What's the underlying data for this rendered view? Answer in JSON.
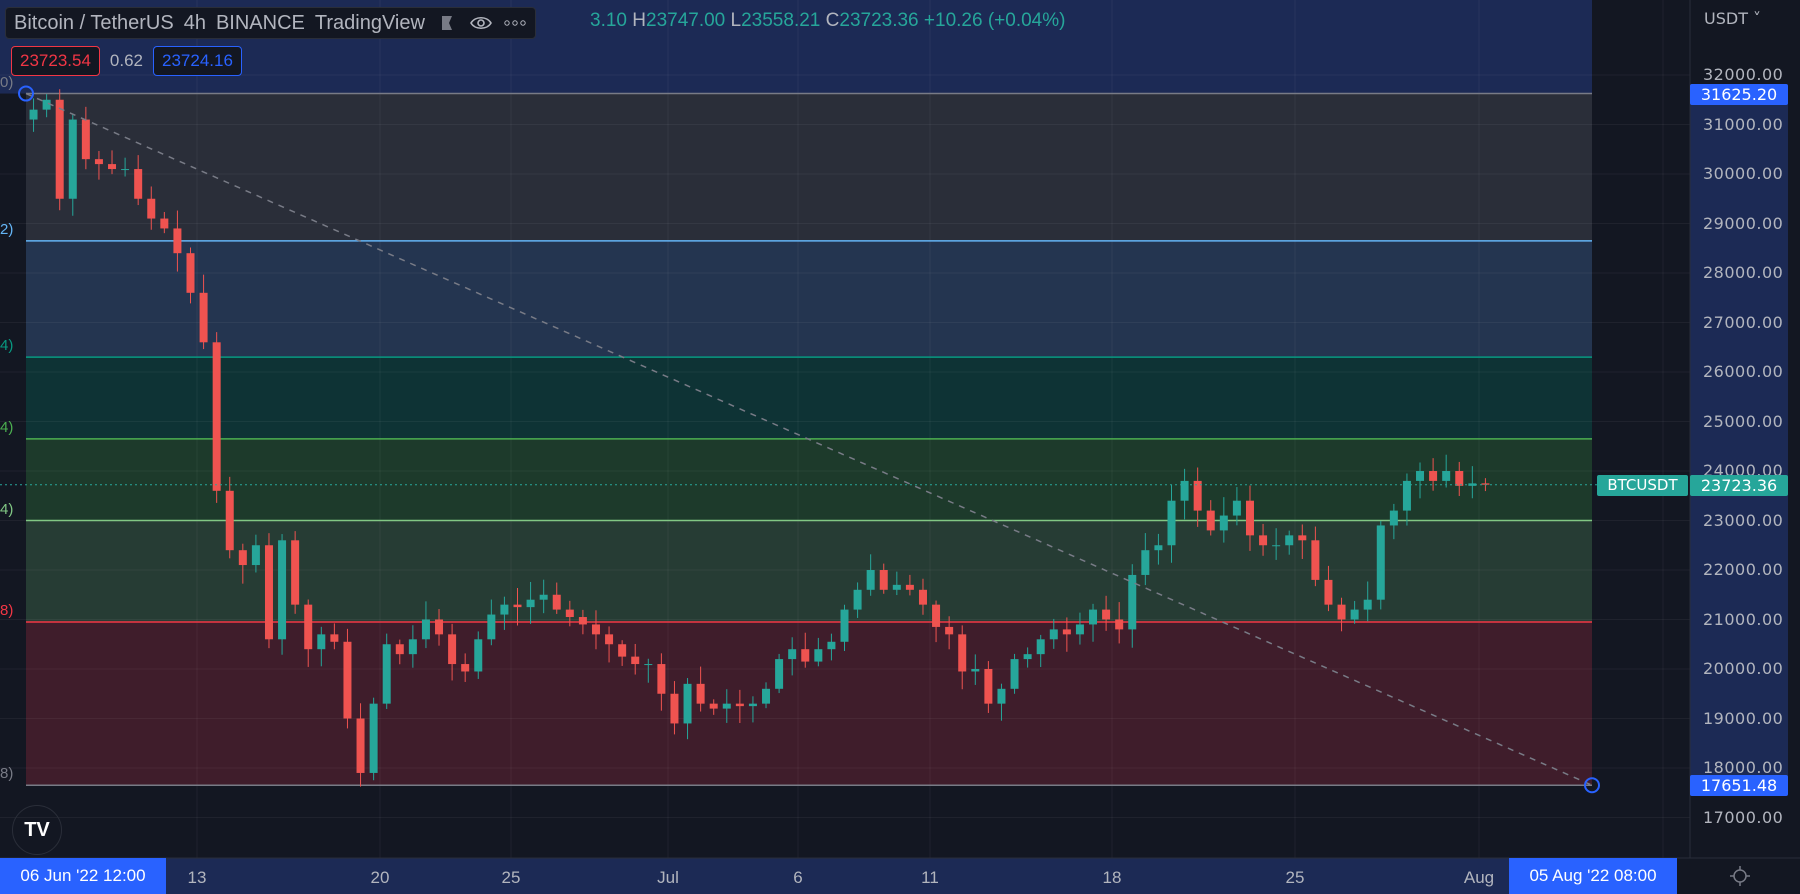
{
  "legend": {
    "symbol": "Bitcoin / TetherUS",
    "interval": "4h",
    "exchange": "BINANCE",
    "source": "TradingView",
    "ohlc_open_partial": "3.10",
    "high_key": "H",
    "high": "23747.00",
    "low_key": "L",
    "low": "23558.21",
    "close_key": "C",
    "close": "23723.36",
    "change": "+10.26 (+0.04%)",
    "icons": [
      "flag-icon",
      "eye-icon",
      "more-icon"
    ]
  },
  "quote": {
    "sell": "23723.54",
    "spread": "0.62",
    "buy": "23724.16"
  },
  "price_axis": {
    "unit": "USDT",
    "ticks": [
      "32000.00",
      "31000.00",
      "30000.00",
      "29000.00",
      "28000.00",
      "27000.00",
      "26000.00",
      "25000.00",
      "24000.00",
      "23000.00",
      "22000.00",
      "21000.00",
      "20000.00",
      "19000.00",
      "18000.00",
      "17000.00"
    ],
    "tick_values": [
      32000,
      31000,
      30000,
      29000,
      28000,
      27000,
      26000,
      25000,
      24000,
      23000,
      22000,
      21000,
      20000,
      19000,
      18000,
      17000
    ],
    "range_high_label": "31625.20",
    "range_low_label": "17651.48",
    "last_price_label": "23723.36",
    "symbol_tag": "BTCUSDT"
  },
  "time_axis": {
    "ticks": [
      "13",
      "20",
      "25",
      "Jul",
      "6",
      "11",
      "18",
      "25",
      "Aug"
    ],
    "range_start_label": "06 Jun '22   12:00",
    "range_end_label": "05 Aug '22   08:00"
  },
  "fib": {
    "levels": [
      {
        "label": "0)",
        "price": 31625.2,
        "line": "#787b86",
        "fill": "#2a2e39",
        "text": "#787b86"
      },
      {
        "label": "2)",
        "price": 28650,
        "line": "#64b5f6",
        "fill": "#243550",
        "text": "#64b5f6"
      },
      {
        "label": "4)",
        "price": 26300,
        "line": "#089981",
        "fill": "#0e3335",
        "text": "#089981"
      },
      {
        "label": "4)",
        "price": 24650,
        "line": "#4caf50",
        "fill": "#1d3a2b",
        "text": "#4caf50"
      },
      {
        "label": "4)",
        "price": 23000,
        "line": "#81c784",
        "fill": "#263c34",
        "text": "#81c784"
      },
      {
        "label": "8)",
        "price": 20950,
        "line": "#f23645",
        "fill": "#3f1d2b",
        "text": "#f23645"
      },
      {
        "label": "8)",
        "price": 17651.48,
        "line": "#787b86",
        "fill": null,
        "text": "#787b86"
      }
    ],
    "top_fill": "#1c2a55"
  },
  "colors": {
    "up": "#26a69a",
    "down": "#ef5350",
    "accent": "#2962ff",
    "background": "#131722"
  },
  "chart_data": {
    "type": "candlestick",
    "note_interval": "12h",
    "start": "2022-06-06 12:00",
    "closes": [
      31300,
      31500,
      29500,
      31100,
      30300,
      30200,
      30100,
      30100,
      29500,
      29100,
      28900,
      28400,
      27600,
      26600,
      23600,
      22400,
      22100,
      22500,
      20600,
      22600,
      21300,
      20400,
      20700,
      20550,
      19000,
      17900,
      19300,
      20500,
      20300,
      20600,
      21000,
      20700,
      20100,
      19950,
      20600,
      21100,
      21300,
      21250,
      21400,
      21500,
      21200,
      21050,
      20900,
      20700,
      20500,
      20250,
      20100,
      20100,
      19500,
      18900,
      19700,
      19300,
      19200,
      19300,
      19250,
      19300,
      19600,
      20200,
      20400,
      20150,
      20400,
      20550,
      21200,
      21600,
      22000,
      21600,
      21700,
      21600,
      21300,
      20850,
      20700,
      19950,
      20000,
      19300,
      19600,
      20200,
      20300,
      20600,
      20800,
      20700,
      20900,
      21200,
      21000,
      20800,
      21900,
      22400,
      22500,
      23400,
      23800,
      23200,
      22800,
      23100,
      23400,
      22700,
      22500,
      22500,
      22700,
      22600,
      21800,
      21300,
      21000,
      21200,
      21400,
      22900,
      23200,
      23800,
      24000,
      23800,
      24000,
      23700,
      23750,
      23723.36
    ],
    "last_price": 23723.36
  }
}
